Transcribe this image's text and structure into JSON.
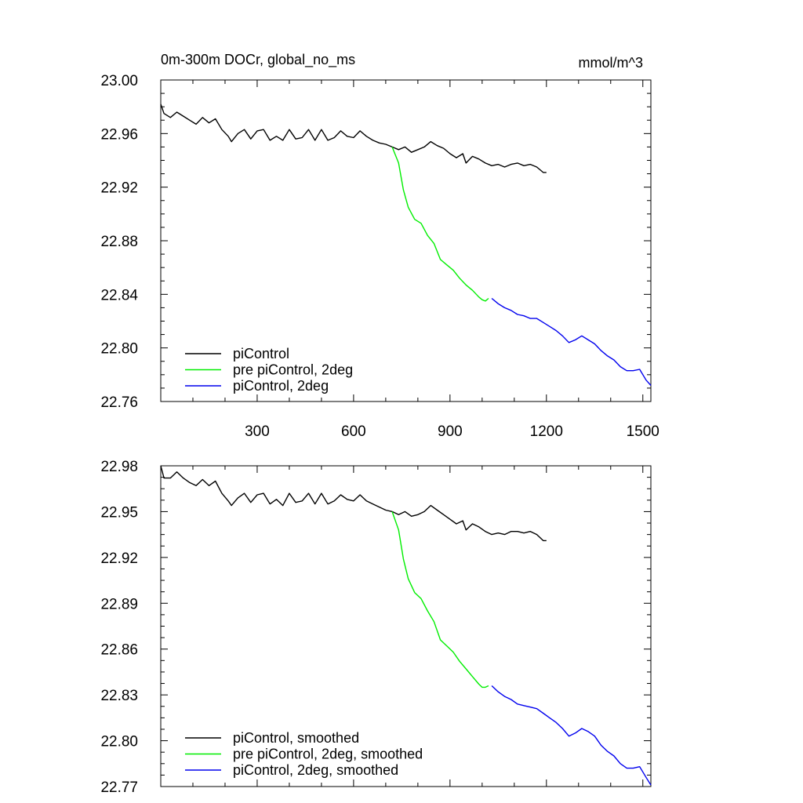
{
  "chart_data": [
    {
      "type": "line",
      "title": "0m-300m DOCr, global_no_ms",
      "units": "mmol/m^3",
      "xlabel": "",
      "ylabel": "",
      "xlim": [
        0,
        1525
      ],
      "ylim": [
        22.76,
        23.0
      ],
      "xticks": [
        "300",
        "600",
        "900",
        "1200",
        "1500"
      ],
      "yticks": [
        "22.76",
        "22.80",
        "22.84",
        "22.88",
        "22.92",
        "22.96",
        "23.00"
      ],
      "legend_position": "bottom-left",
      "series": [
        {
          "name": "piControl",
          "color": "#000000",
          "x": [
            0,
            10,
            30,
            50,
            70,
            90,
            110,
            130,
            150,
            170,
            190,
            210,
            220,
            240,
            260,
            280,
            300,
            320,
            340,
            360,
            380,
            400,
            420,
            440,
            460,
            480,
            500,
            520,
            540,
            560,
            580,
            600,
            620,
            640,
            660,
            680,
            700,
            720,
            740,
            760,
            780,
            800,
            820,
            840,
            860,
            880,
            900,
            920,
            940,
            950,
            970,
            990,
            1010,
            1030,
            1050,
            1070,
            1090,
            1110,
            1130,
            1150,
            1170,
            1190,
            1200
          ],
          "y": [
            22.982,
            22.975,
            22.972,
            22.976,
            22.973,
            22.97,
            22.967,
            22.972,
            22.968,
            22.971,
            22.963,
            22.958,
            22.954,
            22.96,
            22.963,
            22.956,
            22.962,
            22.963,
            22.955,
            22.958,
            22.955,
            22.963,
            22.956,
            22.957,
            22.963,
            22.955,
            22.963,
            22.955,
            22.957,
            22.962,
            22.958,
            22.957,
            22.962,
            22.958,
            22.955,
            22.953,
            22.952,
            22.95,
            22.948,
            22.95,
            22.946,
            22.948,
            22.95,
            22.954,
            22.951,
            22.949,
            22.945,
            22.942,
            22.945,
            22.938,
            22.943,
            22.941,
            22.938,
            22.936,
            22.937,
            22.935,
            22.937,
            22.938,
            22.936,
            22.937,
            22.935,
            22.931,
            22.931
          ]
        },
        {
          "name": "pre piControl, 2deg",
          "color": "#00ee00",
          "x": [
            720,
            740,
            755,
            770,
            790,
            810,
            830,
            850,
            870,
            890,
            910,
            930,
            950,
            970,
            990,
            1000,
            1010,
            1020
          ],
          "y": [
            22.95,
            22.938,
            22.918,
            22.905,
            22.896,
            22.893,
            22.884,
            22.878,
            22.866,
            22.862,
            22.858,
            22.852,
            22.847,
            22.843,
            22.838,
            22.836,
            22.835,
            22.837
          ]
        },
        {
          "name": "piControl, 2deg",
          "color": "#0000ee",
          "x": [
            1030,
            1050,
            1070,
            1090,
            1110,
            1130,
            1150,
            1170,
            1190,
            1210,
            1230,
            1250,
            1270,
            1290,
            1310,
            1330,
            1350,
            1370,
            1390,
            1410,
            1430,
            1450,
            1470,
            1490,
            1510,
            1525
          ],
          "y": [
            22.837,
            22.833,
            22.83,
            22.828,
            22.825,
            22.824,
            22.822,
            22.822,
            22.819,
            22.816,
            22.813,
            22.809,
            22.804,
            22.806,
            22.809,
            22.806,
            22.803,
            22.798,
            22.794,
            22.791,
            22.786,
            22.783,
            22.783,
            22.784,
            22.776,
            22.772
          ]
        }
      ]
    },
    {
      "type": "line",
      "title": "",
      "xlabel": "",
      "ylabel": "",
      "xlim": [
        0,
        1525
      ],
      "ylim": [
        22.77,
        22.98
      ],
      "yticks": [
        "22.77",
        "22.80",
        "22.83",
        "22.86",
        "22.89",
        "22.92",
        "22.95",
        "22.98"
      ],
      "legend_position": "bottom-left",
      "series": [
        {
          "name": "piControl, smoothed",
          "color": "#000000",
          "x": [
            0,
            10,
            30,
            50,
            70,
            90,
            110,
            130,
            150,
            170,
            190,
            210,
            220,
            240,
            260,
            280,
            300,
            320,
            340,
            360,
            380,
            400,
            420,
            440,
            460,
            480,
            500,
            520,
            540,
            560,
            580,
            600,
            620,
            640,
            660,
            680,
            700,
            720,
            740,
            760,
            780,
            800,
            820,
            840,
            860,
            880,
            900,
            920,
            940,
            950,
            970,
            990,
            1010,
            1030,
            1050,
            1070,
            1090,
            1110,
            1130,
            1150,
            1170,
            1190,
            1200
          ],
          "y": [
            22.98,
            22.972,
            22.972,
            22.976,
            22.972,
            22.969,
            22.967,
            22.971,
            22.967,
            22.97,
            22.962,
            22.957,
            22.954,
            22.959,
            22.962,
            22.956,
            22.961,
            22.962,
            22.955,
            22.958,
            22.954,
            22.962,
            22.956,
            22.957,
            22.962,
            22.955,
            22.962,
            22.955,
            22.957,
            22.961,
            22.958,
            22.957,
            22.961,
            22.957,
            22.955,
            22.953,
            22.951,
            22.95,
            22.948,
            22.95,
            22.947,
            22.948,
            22.95,
            22.954,
            22.951,
            22.948,
            22.945,
            22.942,
            22.944,
            22.938,
            22.942,
            22.94,
            22.937,
            22.935,
            22.936,
            22.935,
            22.937,
            22.937,
            22.936,
            22.937,
            22.935,
            22.931,
            22.931
          ]
        },
        {
          "name": "pre piControl, 2deg, smoothed",
          "color": "#00ee00",
          "x": [
            720,
            740,
            755,
            770,
            790,
            810,
            830,
            850,
            870,
            890,
            910,
            930,
            950,
            970,
            990,
            1000,
            1010,
            1020
          ],
          "y": [
            22.95,
            22.938,
            22.919,
            22.906,
            22.897,
            22.893,
            22.885,
            22.878,
            22.866,
            22.862,
            22.858,
            22.852,
            22.847,
            22.842,
            22.837,
            22.835,
            22.835,
            22.836
          ]
        },
        {
          "name": "piControl, 2deg, smoothed",
          "color": "#0000ee",
          "x": [
            1030,
            1050,
            1070,
            1090,
            1110,
            1130,
            1150,
            1170,
            1190,
            1210,
            1230,
            1250,
            1270,
            1290,
            1310,
            1330,
            1350,
            1370,
            1390,
            1410,
            1430,
            1450,
            1470,
            1490,
            1510,
            1525
          ],
          "y": [
            22.836,
            22.832,
            22.829,
            22.827,
            22.824,
            22.823,
            22.822,
            22.821,
            22.818,
            22.815,
            22.812,
            22.808,
            22.803,
            22.805,
            22.808,
            22.806,
            22.803,
            22.797,
            22.793,
            22.79,
            22.785,
            22.782,
            22.782,
            22.783,
            22.776,
            22.771
          ]
        }
      ]
    }
  ]
}
